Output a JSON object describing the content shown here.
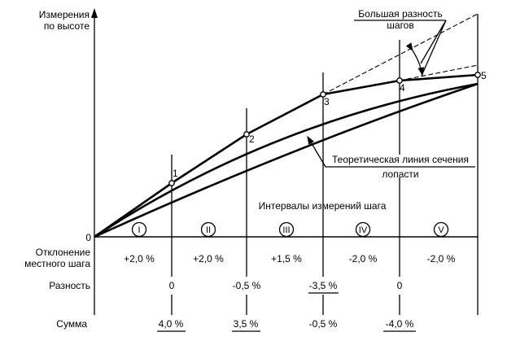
{
  "axis": {
    "y_label_line1": "Измерения",
    "y_label_line2": "по высоте",
    "origin": "0"
  },
  "points": [
    "1",
    "2",
    "3",
    "4",
    "5"
  ],
  "callouts": {
    "pitch_diff_line1": "Большая разность",
    "pitch_diff_line2": "шагов",
    "theory_line1": "Теоретическая линия сечения",
    "theory_line2": "лопасти",
    "intervals": "Интервалы измерений шага"
  },
  "intervals": [
    "I",
    "II",
    "III",
    "IV",
    "V"
  ],
  "rows": {
    "deviation_label_line1": "Отклонение",
    "deviation_label_line2": "местного шага",
    "deviation": [
      "+2,0 %",
      "+2,0 %",
      "+1,5 %",
      "-2,0 %",
      "-2,0 %"
    ],
    "difference_label": "Разность",
    "difference": [
      "0",
      "-0,5 %",
      "-3,5 %",
      "0"
    ],
    "sum_label": "Сумма",
    "sum": [
      "4,0 %",
      "3,5 %",
      "-0,5 %",
      "-4,0 %"
    ]
  }
}
